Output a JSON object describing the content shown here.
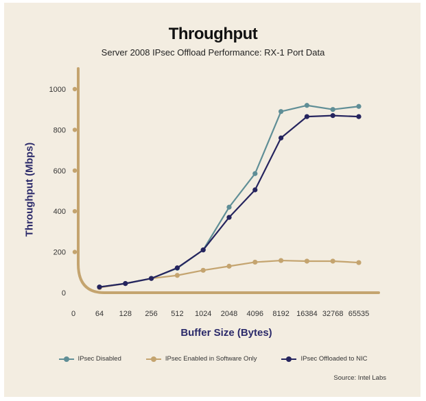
{
  "chart_data": {
    "type": "line",
    "title": "Throughput",
    "subtitle": "Server 2008 IPsec Offload Performance: RX-1 Port Data",
    "xlabel": "Buffer Size (Bytes)",
    "ylabel": "Throughput (Mbps)",
    "x_origin_label": "0",
    "categories": [
      "64",
      "128",
      "256",
      "512",
      "1024",
      "2048",
      "4096",
      "8192",
      "16384",
      "32768",
      "65535"
    ],
    "yticks": [
      0,
      200,
      400,
      600,
      800,
      1000
    ],
    "ylim": [
      0,
      1000
    ],
    "grid": false,
    "legend_position": "bottom",
    "series": [
      {
        "name": "IPsec Disabled",
        "color": "#5f8e96",
        "values": [
          28,
          45,
          70,
          120,
          210,
          420,
          585,
          890,
          920,
          900,
          915
        ]
      },
      {
        "name": "IPsec Enabled in Software Only",
        "color": "#c4a46f",
        "values": [
          25,
          45,
          70,
          85,
          110,
          130,
          150,
          158,
          155,
          155,
          148
        ]
      },
      {
        "name": "IPsec Offloaded to NIC",
        "color": "#25245e",
        "values": [
          28,
          45,
          70,
          122,
          210,
          370,
          505,
          760,
          865,
          870,
          865
        ]
      }
    ],
    "source": "Source: Intel Labs",
    "axis_color": "#c4a46f"
  }
}
